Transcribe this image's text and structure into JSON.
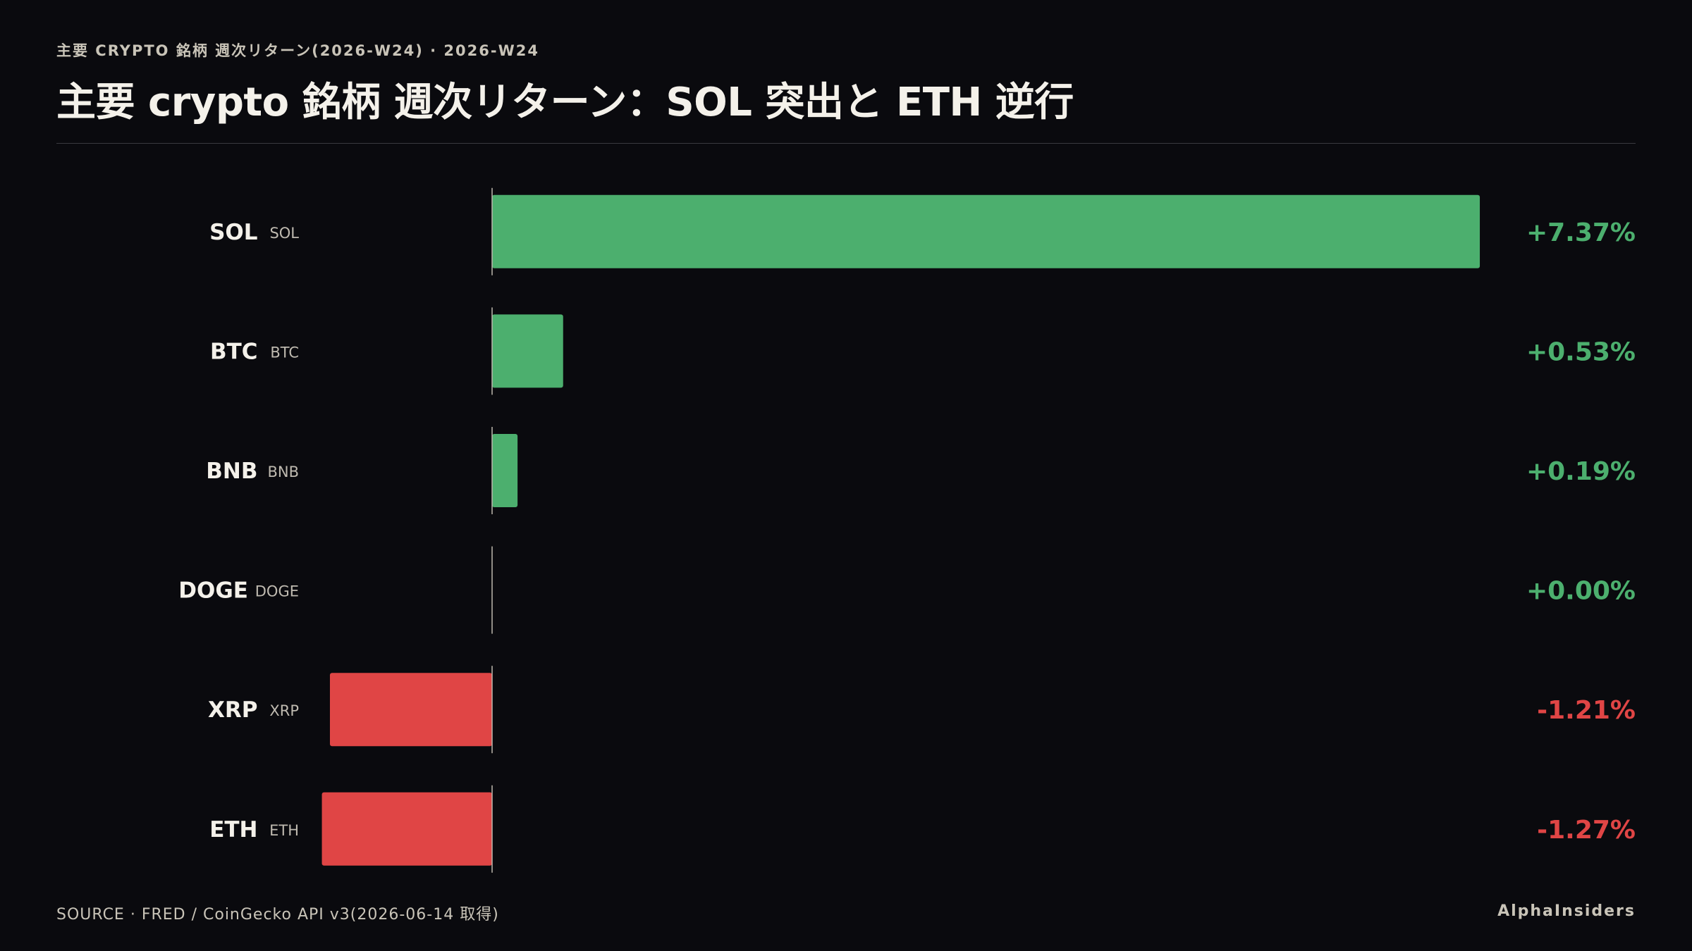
{
  "header": {
    "subtitle": "主要 CRYPTO 銘柄 週次リターン(2026-W24) · 2026-W24",
    "title": "主要 crypto 銘柄 週次リターン：SOL 突出と ETH 逆行"
  },
  "footer": {
    "source": "SOURCE · FRED / CoinGecko API v3(2026-06-14 取得)",
    "brand": "AlphaInsiders"
  },
  "colors": {
    "positive": "#4caf6e",
    "negative": "#e04545",
    "background": "#0a0a0e",
    "baseline": "#bdb8ad"
  },
  "chart_data": {
    "type": "bar",
    "orientation": "horizontal",
    "categories": [
      "SOL",
      "BTC",
      "BNB",
      "DOGE",
      "XRP",
      "ETH"
    ],
    "tickers": [
      "SOL",
      "BTC",
      "BNB",
      "DOGE",
      "XRP",
      "ETH"
    ],
    "values": [
      7.37,
      0.53,
      0.19,
      0.0,
      -1.21,
      -1.27
    ],
    "value_labels": [
      "+7.37%",
      "+0.53%",
      "+0.19%",
      "+0.00%",
      "-1.21%",
      "-1.27%"
    ],
    "unit": "%"
  }
}
